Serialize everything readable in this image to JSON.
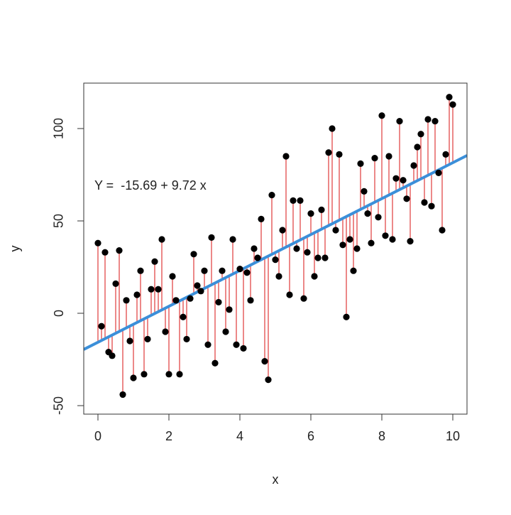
{
  "chart_data": {
    "type": "scatter",
    "x_label": "x",
    "y_label": "y",
    "annotation": "Y =  -15.69 + 9.72 x",
    "fit": {
      "intercept": -15.69,
      "slope": 9.72,
      "color": "#3b8fd9"
    },
    "point_color": "#000000",
    "residual_color": "#e03a3a",
    "xlim": [
      -0.4,
      10.4
    ],
    "ylim": [
      -54.6,
      124.6
    ],
    "xticks": [
      0,
      2,
      4,
      6,
      8,
      10
    ],
    "yticks": [
      -50,
      0,
      50,
      100
    ],
    "x": [
      0,
      0.1,
      0.2,
      0.3,
      0.4,
      0.5,
      0.6,
      0.7,
      0.8,
      0.9,
      1,
      1.1,
      1.2,
      1.3,
      1.4,
      1.5,
      1.6,
      1.7,
      1.8,
      1.9,
      2,
      2.1,
      2.2,
      2.3,
      2.4,
      2.5,
      2.6,
      2.7,
      2.8,
      2.9,
      3,
      3.1,
      3.2,
      3.3,
      3.4,
      3.5,
      3.6,
      3.7,
      3.8,
      3.9,
      4,
      4.1,
      4.2,
      4.3,
      4.4,
      4.5,
      4.6,
      4.7,
      4.8,
      4.9,
      5,
      5.1,
      5.2,
      5.3,
      5.4,
      5.5,
      5.6,
      5.7,
      5.8,
      5.9,
      6,
      6.1,
      6.2,
      6.3,
      6.4,
      6.5,
      6.6,
      6.7,
      6.8,
      6.9,
      7,
      7.1,
      7.2,
      7.3,
      7.4,
      7.5,
      7.6,
      7.7,
      7.8,
      7.9,
      8,
      8.1,
      8.2,
      8.3,
      8.4,
      8.5,
      8.6,
      8.7,
      8.8,
      8.9,
      9,
      9.1,
      9.2,
      9.3,
      9.4,
      9.5,
      9.6,
      9.7,
      9.8,
      9.9,
      10
    ],
    "values": [
      38,
      -7,
      33,
      -21,
      -23,
      16,
      34,
      -44,
      7,
      -15,
      -35,
      10,
      23,
      -33,
      -14,
      13,
      28,
      13,
      40,
      -10,
      -33,
      20,
      7,
      -33,
      -2,
      -14,
      8,
      32,
      15,
      12,
      23,
      -17,
      41,
      -27,
      6,
      23,
      -10,
      2,
      40,
      -17,
      24,
      -19,
      22,
      7,
      35,
      30,
      51,
      -26,
      -36,
      64,
      29,
      20,
      45,
      85,
      10,
      61,
      35,
      61,
      8,
      33,
      54,
      20,
      30,
      56,
      30,
      87,
      100,
      45,
      86,
      37,
      -2,
      40,
      23,
      35,
      81,
      66,
      54,
      38,
      84,
      52,
      107,
      42,
      85,
      40,
      73,
      104,
      72,
      62,
      39,
      80,
      90,
      97,
      60,
      105,
      58,
      104,
      76,
      45,
      86,
      117,
      113
    ]
  }
}
